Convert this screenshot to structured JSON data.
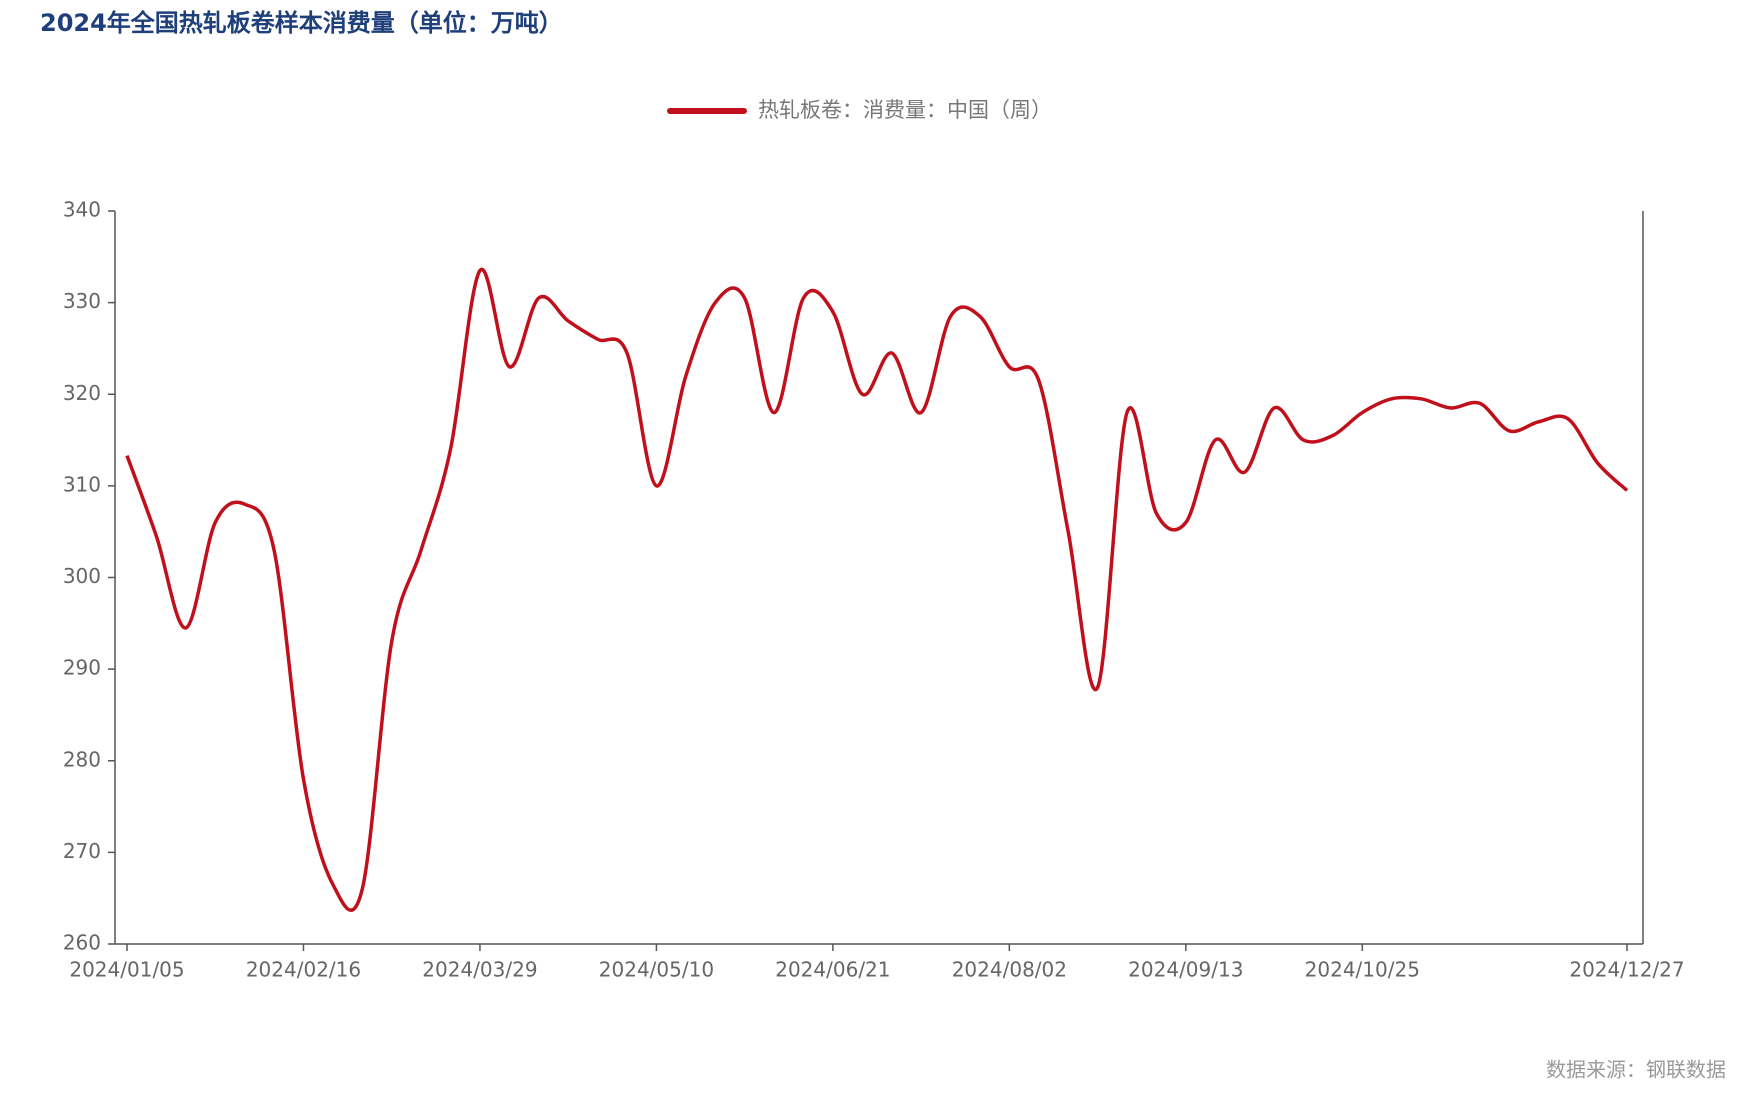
{
  "chart_data": {
    "type": "line",
    "title": "2024年全国热轧板卷样本消费量（单位：万吨）",
    "source": "数据来源：钢联数据",
    "x": [
      "2024/01/05",
      "2024/01/12",
      "2024/01/19",
      "2024/01/26",
      "2024/02/02",
      "2024/02/09",
      "2024/02/16",
      "2024/02/23",
      "2024/03/01",
      "2024/03/08",
      "2024/03/15",
      "2024/03/22",
      "2024/03/29",
      "2024/04/05",
      "2024/04/12",
      "2024/04/19",
      "2024/04/26",
      "2024/05/03",
      "2024/05/10",
      "2024/05/17",
      "2024/05/24",
      "2024/05/31",
      "2024/06/07",
      "2024/06/14",
      "2024/06/21",
      "2024/06/28",
      "2024/07/05",
      "2024/07/12",
      "2024/07/19",
      "2024/07/26",
      "2024/08/02",
      "2024/08/09",
      "2024/08/16",
      "2024/08/23",
      "2024/08/30",
      "2024/09/06",
      "2024/09/13",
      "2024/09/20",
      "2024/09/27",
      "2024/10/04",
      "2024/10/11",
      "2024/10/18",
      "2024/10/25",
      "2024/11/01",
      "2024/11/08",
      "2024/11/15",
      "2024/11/22",
      "2024/11/29",
      "2024/12/06",
      "2024/12/13",
      "2024/12/20",
      "2024/12/27"
    ],
    "series": [
      {
        "name": "热轧板卷：消费量：中国（周）",
        "color": "#c0101c",
        "values": [
          313.3,
          304.5,
          294.5,
          306,
          308,
          303,
          278,
          266.5,
          266,
          293,
          303,
          314,
          333.5,
          323,
          330.5,
          328,
          326,
          324.5,
          310,
          322,
          330,
          330.5,
          318,
          330.5,
          329,
          320,
          324.5,
          318,
          328.5,
          328.5,
          323,
          321.5,
          305,
          288,
          318,
          307,
          306,
          315,
          311.5,
          318.5,
          315,
          315.5,
          318,
          319.5,
          319.5,
          318.5,
          319,
          316,
          317,
          317.3,
          312.5,
          309.5
        ]
      }
    ],
    "xticks": [
      "2024/01/05",
      "2024/02/16",
      "2024/03/29",
      "2024/05/10",
      "2024/06/21",
      "2024/08/02",
      "2024/09/13",
      "2024/10/25",
      "2024/12/27"
    ],
    "ylim": [
      260,
      340
    ],
    "yticks": [
      260,
      270,
      280,
      290,
      300,
      310,
      320,
      330,
      340
    ],
    "grid": false,
    "legend": "top"
  }
}
